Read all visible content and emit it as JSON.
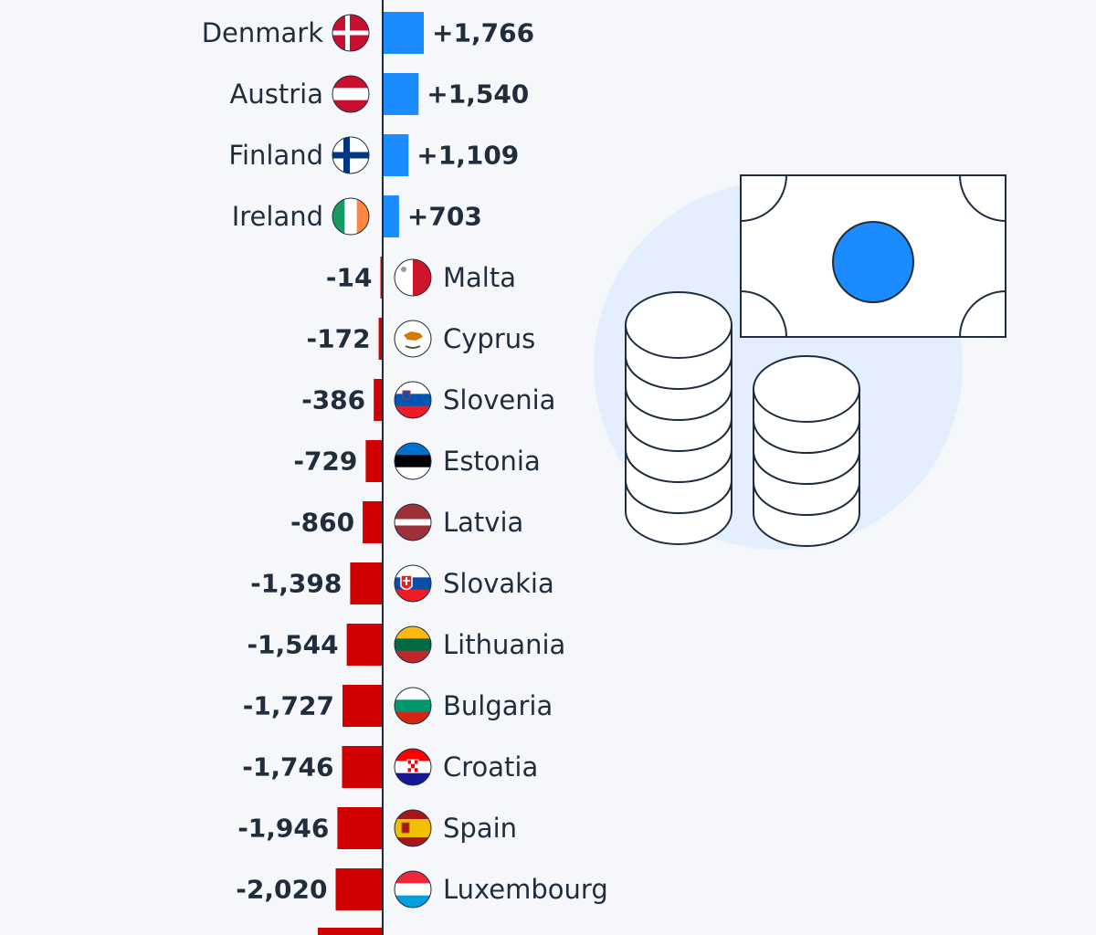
{
  "colors": {
    "background": "#f5f7fa",
    "positive": "#1a8cff",
    "negative": "#d10000",
    "axis": "#1f2d3d",
    "text": "#1f2d3d",
    "illustration_circle": "#e3effe",
    "illustration_accent": "#1a8cff"
  },
  "chart_data": {
    "type": "bar",
    "orientation": "horizontal",
    "title": "",
    "xlabel": "",
    "ylabel": "",
    "grid": false,
    "legend": "none",
    "categories": [
      "Denmark",
      "Austria",
      "Finland",
      "Ireland",
      "Malta",
      "Cyprus",
      "Slovenia",
      "Estonia",
      "Latvia",
      "Slovakia",
      "Lithuania",
      "Bulgaria",
      "Croatia",
      "Spain",
      "Luxembourg"
    ],
    "values": [
      1766,
      1540,
      1109,
      703,
      -14,
      -172,
      -386,
      -729,
      -860,
      -1398,
      -1544,
      -1727,
      -1746,
      -1946,
      -2020
    ],
    "labels": [
      "+1,766",
      "+1,540",
      "+1,109",
      "+703",
      "-14",
      "-172",
      "-386",
      "-729",
      "-860",
      "-1,398",
      "-1,544",
      "-1,727",
      "-1,746",
      "-1,946",
      "-2,020"
    ],
    "flags": [
      "denmark-flag-icon",
      "austria-flag-icon",
      "finland-flag-icon",
      "ireland-flag-icon",
      "malta-flag-icon",
      "cyprus-flag-icon",
      "slovenia-flag-icon",
      "estonia-flag-icon",
      "latvia-flag-icon",
      "slovakia-flag-icon",
      "lithuania-flag-icon",
      "bulgaria-flag-icon",
      "croatia-flag-icon",
      "spain-flag-icon",
      "luxembourg-flag-icon"
    ]
  },
  "illustration": {
    "banknote-icon": "banknote-icon",
    "coins-icon": "coin-stacks-icon"
  }
}
